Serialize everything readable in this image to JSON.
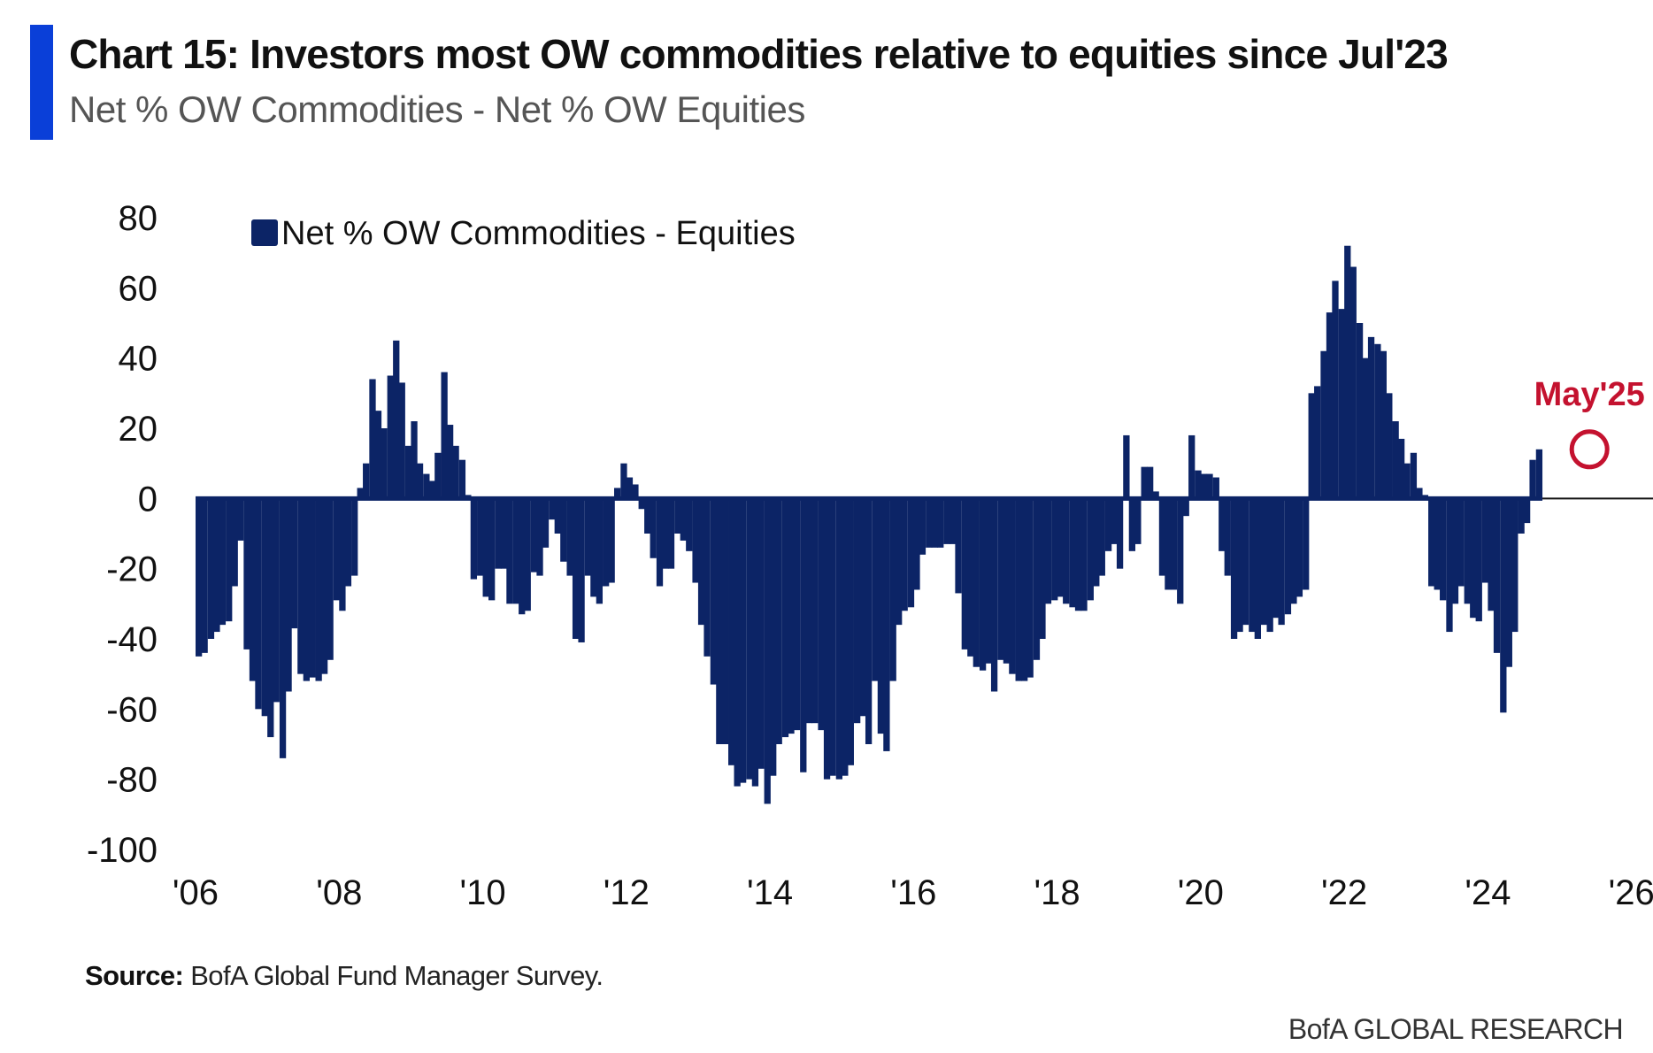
{
  "header": {
    "title": "Chart 15: Investors most OW commodities relative to equities since Jul'23",
    "subtitle": "Net % OW Commodities - Net % OW Equities"
  },
  "footer": {
    "source_label": "Source:",
    "source_text": " BofA Global Fund Manager Survey.",
    "brand": "BofA GLOBAL RESEARCH"
  },
  "colors": {
    "accent": "#0a3fd8",
    "bars": "#0c2466",
    "annotation": "#c4122f"
  },
  "chart_data": {
    "type": "bar",
    "ylim": [
      -100,
      80
    ],
    "yticks": [
      80,
      60,
      40,
      20,
      0,
      -20,
      -40,
      -60,
      -80,
      -100
    ],
    "xlim": [
      2006,
      2026.3
    ],
    "xticks": [
      {
        "value": 2006,
        "label": "'06"
      },
      {
        "value": 2008,
        "label": "'08"
      },
      {
        "value": 2010,
        "label": "'10"
      },
      {
        "value": 2012,
        "label": "'12"
      },
      {
        "value": 2014,
        "label": "'14"
      },
      {
        "value": 2016,
        "label": "'16"
      },
      {
        "value": 2018,
        "label": "'18"
      },
      {
        "value": 2020,
        "label": "'20"
      },
      {
        "value": 2022,
        "label": "'22"
      },
      {
        "value": 2024,
        "label": "'24"
      },
      {
        "value": 2026,
        "label": "'26"
      }
    ],
    "legend": {
      "label": "Net % OW Commodities - Equities",
      "position": "top-left"
    },
    "annotation": {
      "label": "May'25",
      "x": 2025.37,
      "y": 14
    },
    "series": [
      {
        "name": "Net % OW Commodities - Equities",
        "points": [
          [
            2006.0,
            -45
          ],
          [
            2006.08,
            -44
          ],
          [
            2006.17,
            -40
          ],
          [
            2006.25,
            -38
          ],
          [
            2006.33,
            -36
          ],
          [
            2006.42,
            -35
          ],
          [
            2006.5,
            -25
          ],
          [
            2006.58,
            -12
          ],
          [
            2006.67,
            -43
          ],
          [
            2006.75,
            -52
          ],
          [
            2006.83,
            -60
          ],
          [
            2006.92,
            -62
          ],
          [
            2007.0,
            -68
          ],
          [
            2007.08,
            -58
          ],
          [
            2007.17,
            -74
          ],
          [
            2007.25,
            -55
          ],
          [
            2007.33,
            -37
          ],
          [
            2007.42,
            -50
          ],
          [
            2007.5,
            -52
          ],
          [
            2007.58,
            -51
          ],
          [
            2007.67,
            -52
          ],
          [
            2007.75,
            -50
          ],
          [
            2007.83,
            -46
          ],
          [
            2007.92,
            -29
          ],
          [
            2008.0,
            -32
          ],
          [
            2008.08,
            -25
          ],
          [
            2008.17,
            -22
          ],
          [
            2008.25,
            3
          ],
          [
            2008.33,
            10
          ],
          [
            2008.42,
            34
          ],
          [
            2008.5,
            25
          ],
          [
            2008.58,
            20
          ],
          [
            2008.67,
            35
          ],
          [
            2008.75,
            45
          ],
          [
            2008.83,
            33
          ],
          [
            2008.92,
            15
          ],
          [
            2009.0,
            22
          ],
          [
            2009.08,
            10
          ],
          [
            2009.17,
            7
          ],
          [
            2009.25,
            5
          ],
          [
            2009.33,
            13
          ],
          [
            2009.42,
            36
          ],
          [
            2009.5,
            21
          ],
          [
            2009.58,
            15
          ],
          [
            2009.67,
            11
          ],
          [
            2009.75,
            1
          ],
          [
            2009.83,
            -23
          ],
          [
            2009.92,
            -22
          ],
          [
            2010.0,
            -28
          ],
          [
            2010.08,
            -29
          ],
          [
            2010.17,
            -20
          ],
          [
            2010.25,
            -20
          ],
          [
            2010.33,
            -30
          ],
          [
            2010.42,
            -30
          ],
          [
            2010.5,
            -33
          ],
          [
            2010.58,
            -32
          ],
          [
            2010.67,
            -21
          ],
          [
            2010.75,
            -22
          ],
          [
            2010.83,
            -14
          ],
          [
            2010.92,
            -6
          ],
          [
            2011.0,
            -10
          ],
          [
            2011.08,
            -18
          ],
          [
            2011.17,
            -22
          ],
          [
            2011.25,
            -40
          ],
          [
            2011.33,
            -41
          ],
          [
            2011.42,
            -22
          ],
          [
            2011.5,
            -28
          ],
          [
            2011.58,
            -30
          ],
          [
            2011.67,
            -25
          ],
          [
            2011.75,
            -24
          ],
          [
            2011.83,
            3
          ],
          [
            2011.92,
            10
          ],
          [
            2012.0,
            6
          ],
          [
            2012.08,
            4
          ],
          [
            2012.17,
            -3
          ],
          [
            2012.25,
            -10
          ],
          [
            2012.33,
            -17
          ],
          [
            2012.42,
            -25
          ],
          [
            2012.5,
            -20
          ],
          [
            2012.58,
            -20
          ],
          [
            2012.67,
            -10
          ],
          [
            2012.75,
            -12
          ],
          [
            2012.83,
            -15
          ],
          [
            2012.92,
            -24
          ],
          [
            2013.0,
            -36
          ],
          [
            2013.08,
            -45
          ],
          [
            2013.17,
            -53
          ],
          [
            2013.25,
            -70
          ],
          [
            2013.33,
            -70
          ],
          [
            2013.42,
            -76
          ],
          [
            2013.5,
            -82
          ],
          [
            2013.58,
            -81
          ],
          [
            2013.67,
            -80
          ],
          [
            2013.75,
            -82
          ],
          [
            2013.83,
            -77
          ],
          [
            2013.92,
            -87
          ],
          [
            2014.0,
            -79
          ],
          [
            2014.08,
            -70
          ],
          [
            2014.17,
            -68
          ],
          [
            2014.25,
            -67
          ],
          [
            2014.33,
            -66
          ],
          [
            2014.42,
            -78
          ],
          [
            2014.5,
            -64
          ],
          [
            2014.58,
            -64
          ],
          [
            2014.67,
            -66
          ],
          [
            2014.75,
            -80
          ],
          [
            2014.83,
            -79
          ],
          [
            2014.92,
            -80
          ],
          [
            2015.0,
            -79
          ],
          [
            2015.08,
            -76
          ],
          [
            2015.17,
            -64
          ],
          [
            2015.25,
            -62
          ],
          [
            2015.33,
            -70
          ],
          [
            2015.42,
            -52
          ],
          [
            2015.5,
            -67
          ],
          [
            2015.58,
            -72
          ],
          [
            2015.67,
            -52
          ],
          [
            2015.75,
            -36
          ],
          [
            2015.83,
            -32
          ],
          [
            2015.92,
            -31
          ],
          [
            2016.0,
            -26
          ],
          [
            2016.08,
            -16
          ],
          [
            2016.17,
            -14
          ],
          [
            2016.25,
            -14
          ],
          [
            2016.33,
            -14
          ],
          [
            2016.42,
            -13
          ],
          [
            2016.5,
            -13
          ],
          [
            2016.58,
            -27
          ],
          [
            2016.67,
            -43
          ],
          [
            2016.75,
            -45
          ],
          [
            2016.83,
            -48
          ],
          [
            2016.92,
            -49
          ],
          [
            2017.0,
            -47
          ],
          [
            2017.08,
            -55
          ],
          [
            2017.17,
            -46
          ],
          [
            2017.25,
            -47
          ],
          [
            2017.33,
            -50
          ],
          [
            2017.42,
            -52
          ],
          [
            2017.5,
            -52
          ],
          [
            2017.58,
            -51
          ],
          [
            2017.67,
            -46
          ],
          [
            2017.75,
            -40
          ],
          [
            2017.83,
            -30
          ],
          [
            2017.92,
            -29
          ],
          [
            2018.0,
            -28
          ],
          [
            2018.08,
            -30
          ],
          [
            2018.17,
            -31
          ],
          [
            2018.25,
            -32
          ],
          [
            2018.33,
            -32
          ],
          [
            2018.42,
            -29
          ],
          [
            2018.5,
            -25
          ],
          [
            2018.58,
            -22
          ],
          [
            2018.67,
            -15
          ],
          [
            2018.75,
            -13
          ],
          [
            2018.83,
            -20
          ],
          [
            2018.92,
            18
          ],
          [
            2019.0,
            -15
          ],
          [
            2019.08,
            -13
          ],
          [
            2019.17,
            9
          ],
          [
            2019.25,
            9
          ],
          [
            2019.33,
            2
          ],
          [
            2019.42,
            -22
          ],
          [
            2019.5,
            -26
          ],
          [
            2019.58,
            -26
          ],
          [
            2019.67,
            -30
          ],
          [
            2019.75,
            -5
          ],
          [
            2019.83,
            18
          ],
          [
            2019.92,
            8
          ],
          [
            2020.0,
            7
          ],
          [
            2020.08,
            7
          ],
          [
            2020.17,
            6
          ],
          [
            2020.25,
            -15
          ],
          [
            2020.33,
            -22
          ],
          [
            2020.42,
            -40
          ],
          [
            2020.5,
            -38
          ],
          [
            2020.58,
            -36
          ],
          [
            2020.67,
            -38
          ],
          [
            2020.75,
            -40
          ],
          [
            2020.83,
            -36
          ],
          [
            2020.92,
            -38
          ],
          [
            2021.0,
            -34
          ],
          [
            2021.08,
            -36
          ],
          [
            2021.17,
            -33
          ],
          [
            2021.25,
            -30
          ],
          [
            2021.33,
            -28
          ],
          [
            2021.42,
            -26
          ],
          [
            2021.5,
            30
          ],
          [
            2021.58,
            32
          ],
          [
            2021.67,
            42
          ],
          [
            2021.75,
            53
          ],
          [
            2021.83,
            62
          ],
          [
            2021.92,
            54
          ],
          [
            2022.0,
            72
          ],
          [
            2022.08,
            66
          ],
          [
            2022.17,
            50
          ],
          [
            2022.25,
            40
          ],
          [
            2022.33,
            46
          ],
          [
            2022.42,
            44
          ],
          [
            2022.5,
            42
          ],
          [
            2022.58,
            30
          ],
          [
            2022.67,
            22
          ],
          [
            2022.75,
            17
          ],
          [
            2022.83,
            10
          ],
          [
            2022.92,
            13
          ],
          [
            2023.0,
            3
          ],
          [
            2023.08,
            1
          ],
          [
            2023.17,
            -25
          ],
          [
            2023.25,
            -26
          ],
          [
            2023.33,
            -29
          ],
          [
            2023.42,
            -38
          ],
          [
            2023.5,
            -30
          ],
          [
            2023.58,
            -25
          ],
          [
            2023.67,
            -30
          ],
          [
            2023.75,
            -34
          ],
          [
            2023.83,
            -35
          ],
          [
            2023.92,
            -24
          ],
          [
            2024.0,
            -32
          ],
          [
            2024.08,
            -44
          ],
          [
            2024.17,
            -61
          ],
          [
            2024.25,
            -48
          ],
          [
            2024.33,
            -38
          ],
          [
            2024.42,
            -10
          ],
          [
            2024.5,
            -7
          ],
          [
            2024.58,
            11
          ],
          [
            2024.67,
            14
          ]
        ]
      }
    ]
  }
}
